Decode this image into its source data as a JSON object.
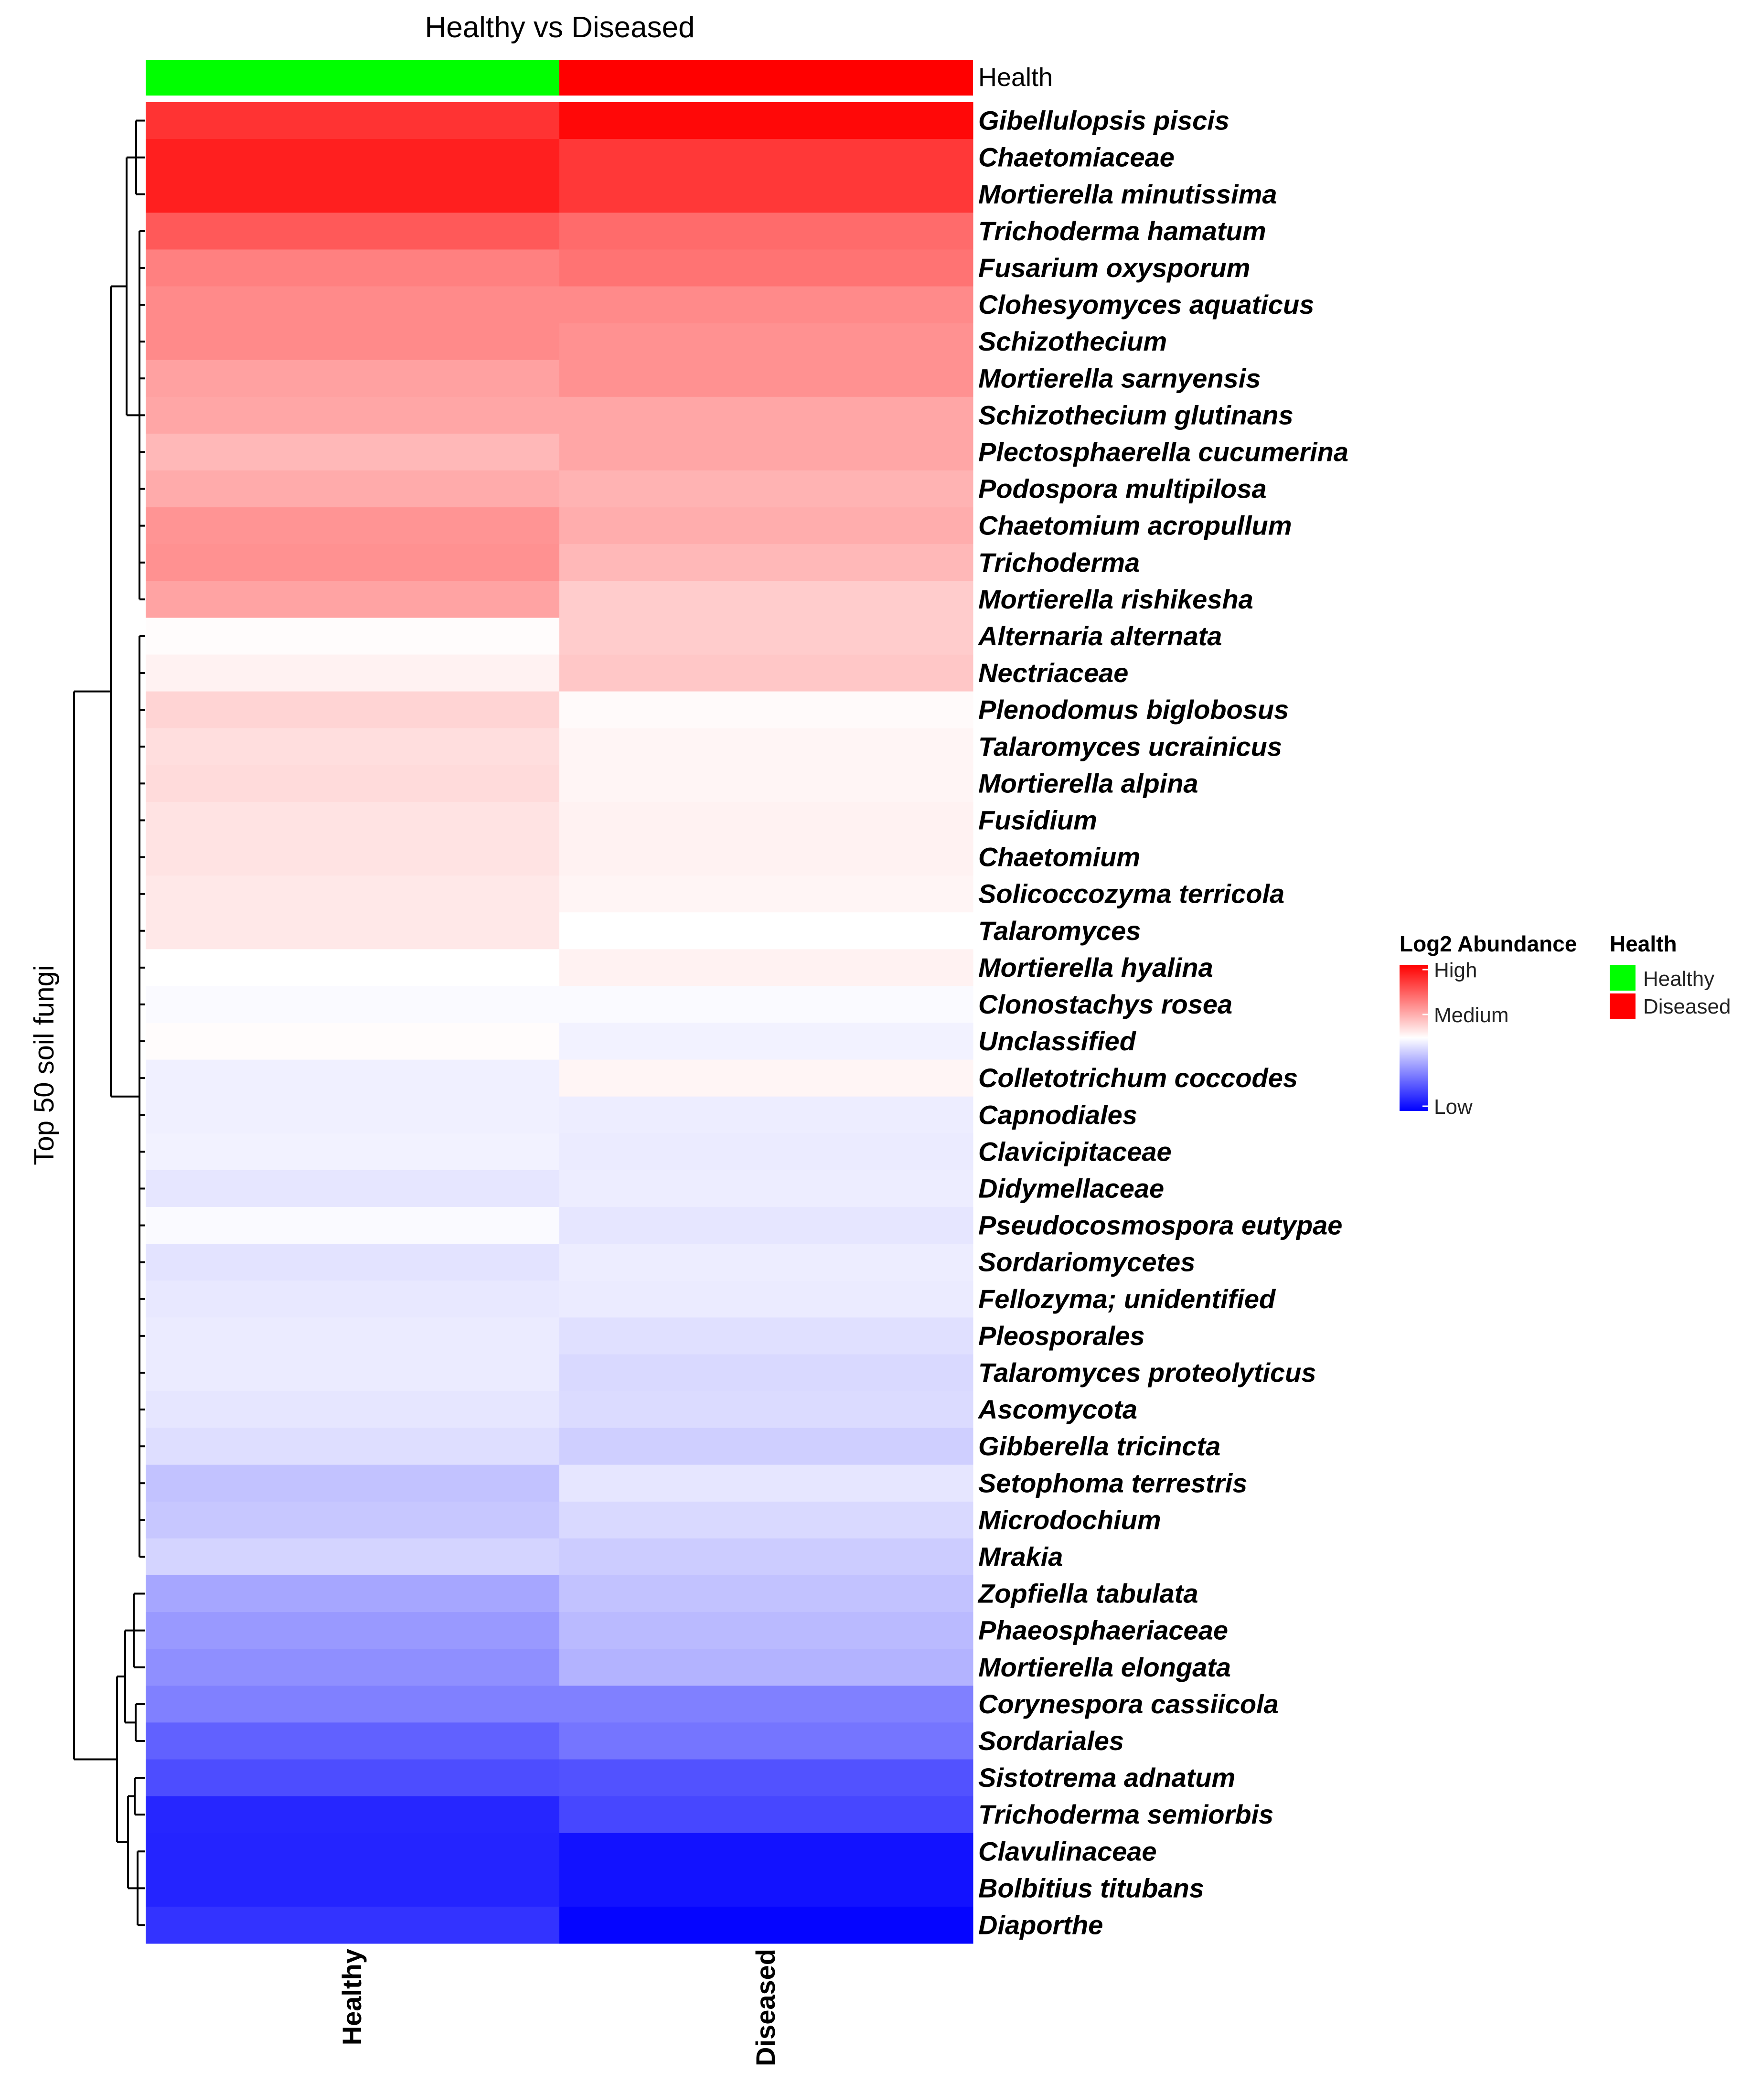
{
  "chart_data": {
    "type": "heatmap",
    "title": "Healthy vs Diseased",
    "ylabel": "Top 50 soil fungi",
    "columns": [
      "Healthy",
      "Diseased"
    ],
    "annotation": {
      "label": "Health",
      "values": [
        "Healthy",
        "Diseased"
      ],
      "colors": {
        "Healthy": "#00ff00",
        "Diseased": "#ff0000"
      }
    },
    "rows": [
      "Gibellulopsis piscis",
      "Chaetomiaceae",
      "Mortierella minutissima",
      "Trichoderma hamatum",
      "Fusarium oxysporum",
      "Clohesyomyces aquaticus",
      "Schizothecium",
      "Mortierella sarnyensis",
      "Schizothecium glutinans",
      "Plectosphaerella cucumerina",
      "Podospora multipilosa",
      "Chaetomium acropullum",
      "Trichoderma",
      "Mortierella rishikesha",
      "Alternaria alternata",
      "Nectriaceae",
      "Plenodomus biglobosus",
      "Talaromyces ucrainicus",
      "Mortierella alpina",
      "Fusidium",
      "Chaetomium",
      "Solicoccozyma terricola",
      "Talaromyces",
      "Mortierella hyalina",
      "Clonostachys rosea",
      "Unclassified",
      "Colletotrichum coccodes",
      "Capnodiales",
      "Clavicipitaceae",
      "Didymellaceae",
      "Pseudocosmospora eutypae",
      "Sordariomycetes",
      "Fellozyma;  unidentified",
      "Pleosporales",
      "Talaromyces proteolyticus",
      "Ascomycota",
      "Gibberella tricincta",
      "Setophoma terrestris",
      "Microdochium",
      "Mrakia",
      "Zopfiella tabulata",
      "Phaeosphaeriaceae",
      "Mortierella elongata",
      "Corynespora cassiicola",
      "Sordariales",
      "Sistotrema adnatum",
      "Trichoderma semiorbis",
      "Clavulinaceae",
      "Bolbitius titubans",
      "Diaporthe"
    ],
    "values": [
      [
        0.8,
        0.97
      ],
      [
        0.88,
        0.78
      ],
      [
        0.88,
        0.78
      ],
      [
        0.65,
        0.58
      ],
      [
        0.5,
        0.55
      ],
      [
        0.46,
        0.46
      ],
      [
        0.46,
        0.43
      ],
      [
        0.37,
        0.43
      ],
      [
        0.35,
        0.35
      ],
      [
        0.28,
        0.35
      ],
      [
        0.33,
        0.3
      ],
      [
        0.42,
        0.32
      ],
      [
        0.43,
        0.28
      ],
      [
        0.36,
        0.2
      ],
      [
        0.01,
        0.2
      ],
      [
        0.05,
        0.22
      ],
      [
        0.17,
        0.02
      ],
      [
        0.13,
        0.04
      ],
      [
        0.14,
        0.04
      ],
      [
        0.11,
        0.05
      ],
      [
        0.11,
        0.05
      ],
      [
        0.09,
        0.04
      ],
      [
        0.09,
        0.0
      ],
      [
        0.0,
        0.05
      ],
      [
        -0.02,
        -0.02
      ],
      [
        0.01,
        -0.05
      ],
      [
        -0.06,
        0.04
      ],
      [
        -0.06,
        -0.07
      ],
      [
        -0.05,
        -0.08
      ],
      [
        -0.1,
        -0.07
      ],
      [
        -0.02,
        -0.1
      ],
      [
        -0.11,
        -0.07
      ],
      [
        -0.09,
        -0.08
      ],
      [
        -0.08,
        -0.12
      ],
      [
        -0.08,
        -0.15
      ],
      [
        -0.1,
        -0.14
      ],
      [
        -0.13,
        -0.19
      ],
      [
        -0.24,
        -0.1
      ],
      [
        -0.22,
        -0.15
      ],
      [
        -0.17,
        -0.2
      ],
      [
        -0.35,
        -0.24
      ],
      [
        -0.4,
        -0.27
      ],
      [
        -0.44,
        -0.3
      ],
      [
        -0.5,
        -0.5
      ],
      [
        -0.62,
        -0.54
      ],
      [
        -0.7,
        -0.68
      ],
      [
        -0.85,
        -0.72
      ],
      [
        -0.86,
        -0.93
      ],
      [
        -0.86,
        -0.93
      ],
      [
        -0.8,
        -0.98
      ]
    ],
    "color_scale": {
      "title": "Log2 Abundance",
      "labels": [
        "High",
        "Medium",
        "Low"
      ],
      "high_color": "#ff0000",
      "mid_color": "#ffffff",
      "low_color": "#0000ff"
    },
    "legend": {
      "title": "Health",
      "entries": [
        {
          "label": "Healthy",
          "color": "#00ff00"
        },
        {
          "label": "Diseased",
          "color": "#ff0000"
        }
      ],
      "position": "right"
    }
  }
}
